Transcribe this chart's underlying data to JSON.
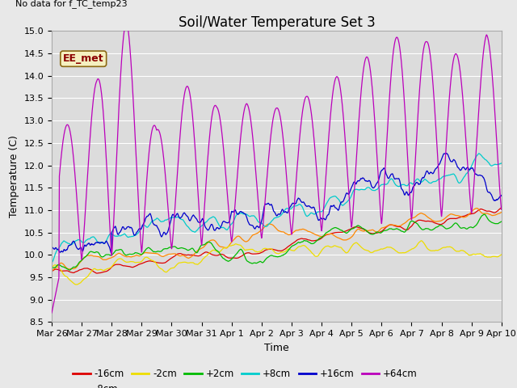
{
  "title": "Soil/Water Temperature Set 3",
  "xlabel": "Time",
  "ylabel": "Temperature (C)",
  "no_data_label": "No data for f_TC_temp23",
  "annotation_label": "EE_met",
  "ylim": [
    8.5,
    15.0
  ],
  "yticks": [
    8.5,
    9.0,
    9.5,
    10.0,
    10.5,
    11.0,
    11.5,
    12.0,
    12.5,
    13.0,
    13.5,
    14.0,
    14.5,
    15.0
  ],
  "series_colors": {
    "-16cm": "#dd0000",
    "-8cm": "#ff8800",
    "-2cm": "#eedd00",
    "+2cm": "#00bb00",
    "+8cm": "#00cccc",
    "+16cm": "#0000cc",
    "+64cm": "#bb00bb"
  },
  "bg_color": "#dcdcdc",
  "grid_color": "#ffffff",
  "fig_bg_color": "#e8e8e8",
  "n_points": 3000,
  "x_tick_labels": [
    "Mar 26",
    "Mar 27",
    "Mar 28",
    "Mar 29",
    "Mar 30",
    "Mar 31",
    "Apr 1",
    "Apr 2",
    "Apr 3",
    "Apr 4",
    "Apr 5",
    "Apr 6",
    "Apr 7",
    "Apr 8",
    "Apr 9",
    "Apr 10"
  ],
  "title_fontsize": 12,
  "axis_fontsize": 9,
  "tick_fontsize": 8
}
